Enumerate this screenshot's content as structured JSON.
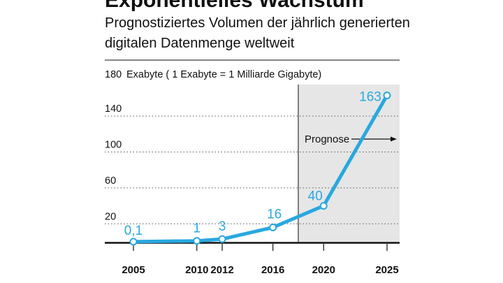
{
  "header": {
    "title": "Exponentielles Wachstum",
    "subtitle_line1": "Prognostiziertes Volumen der jährlich generierten",
    "subtitle_line2": "digitalen Datenmenge weltweit"
  },
  "colors": {
    "line": "#29a8e0",
    "forecast_shade": "#e6e6e6",
    "grid": "#555555",
    "axis": "#111111"
  },
  "chart_data": {
    "type": "line",
    "title": "Exponentielles Wachstum",
    "subtitle": "Prognostiziertes Volumen der jährlich generierten digitalen Datenmenge weltweit",
    "ylabel": "Exabyte ( 1 Exabyte = 1 Milliarde Gigabyte)",
    "xlabel": "",
    "x": [
      2005,
      2010,
      2012,
      2016,
      2020,
      2025
    ],
    "values": [
      0.1,
      1,
      3,
      16,
      40,
      163
    ],
    "data_labels": [
      "0,1",
      "1",
      "3",
      "16",
      "40",
      "163"
    ],
    "x_ticks": [
      "2005",
      "2010",
      "2012",
      "2016",
      "2020",
      "2025"
    ],
    "y_ticks": [
      "20",
      "60",
      "100",
      "140",
      "180"
    ],
    "ylim": [
      0,
      180
    ],
    "grid": "dotted horizontal",
    "forecast_start": 2018,
    "annotation": "Prognose"
  }
}
